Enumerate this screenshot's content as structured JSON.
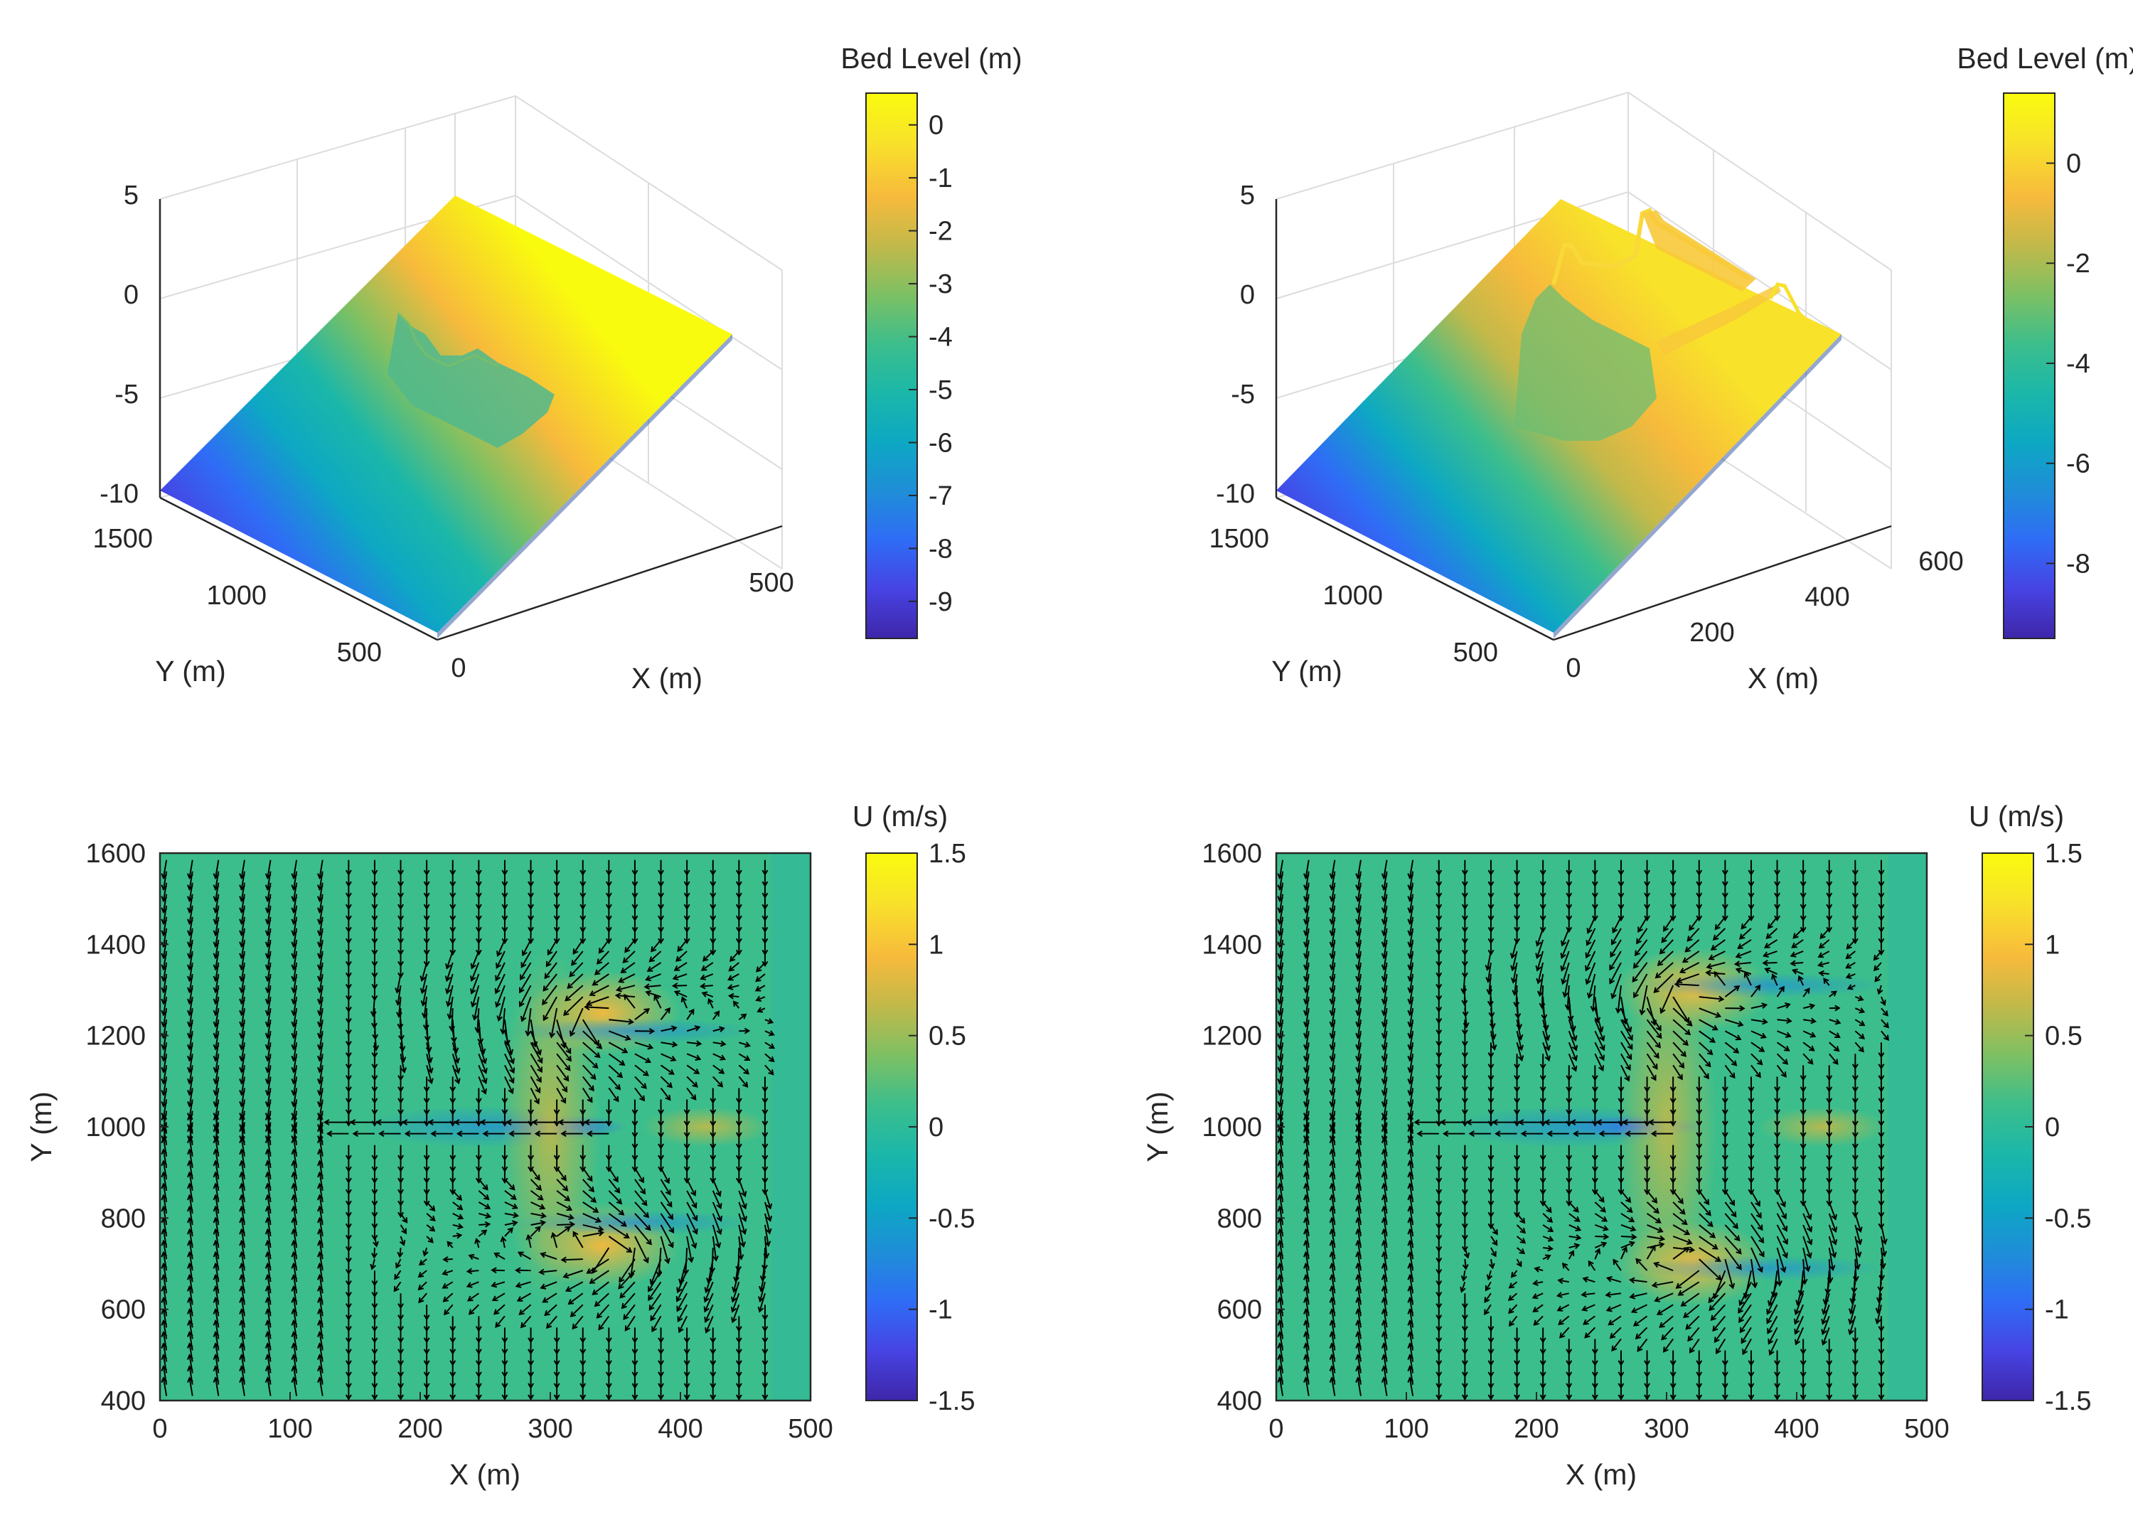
{
  "figure": {
    "panels": 4
  },
  "colormap": [
    "#3e26a8",
    "#4743e3",
    "#2f6cf6",
    "#1f8ed8",
    "#0da8c3",
    "#1bb7a9",
    "#3cbe8c",
    "#7dc063",
    "#c1b94a",
    "#f7ba3c",
    "#f8e22a",
    "#f9fb0e"
  ],
  "chart_data": [
    {
      "type": "surface",
      "id": "bed-level-left",
      "title": "",
      "colorbar_label": "Bed Level (m)",
      "colorbar_range": [
        -9.7,
        0.6
      ],
      "colorbar_ticks": [
        "0",
        "-1",
        "-2",
        "-3",
        "-4",
        "-5",
        "-6",
        "-7",
        "-8",
        "-9"
      ],
      "colorbar_tick_values": [
        0,
        -1,
        -2,
        -3,
        -4,
        -5,
        -6,
        -7,
        -8,
        -9
      ],
      "zlim": [
        -10,
        5
      ],
      "z_ticks": [
        "5",
        "0",
        "-5",
        "-10"
      ],
      "xlabel": "X (m)",
      "x_ticks": [
        "0",
        "500"
      ],
      "xlim": [
        0,
        500
      ],
      "ylabel": "Y (m)",
      "y_ticks": [
        "1500",
        "1000",
        "500"
      ],
      "ylim": [
        400,
        1600
      ],
      "surface_min": -9.7,
      "surface_max": 0.6
    },
    {
      "type": "surface",
      "id": "bed-level-right",
      "title": "",
      "colorbar_label": "Bed Level (m)",
      "colorbar_range": [
        -9.5,
        1.4
      ],
      "colorbar_ticks": [
        "0",
        "-2",
        "-4",
        "-6",
        "-8"
      ],
      "colorbar_tick_values": [
        0,
        -2,
        -4,
        -6,
        -8
      ],
      "zlim": [
        -10,
        5
      ],
      "z_ticks": [
        "5",
        "0",
        "-5",
        "-10"
      ],
      "xlabel": "X (m)",
      "x_ticks": [
        "0",
        "200",
        "400",
        "600"
      ],
      "xlim": [
        0,
        600
      ],
      "ylabel": "Y (m)",
      "y_ticks": [
        "1500",
        "1000",
        "500"
      ],
      "ylim": [
        400,
        1600
      ],
      "surface_min": -9.5,
      "surface_max": 1.4
    },
    {
      "type": "heatmap",
      "id": "velocity-left",
      "colorbar_label": "U (m/s)",
      "colorbar_range": [
        -1.5,
        1.5
      ],
      "colorbar_ticks": [
        "1.5",
        "1",
        "0.5",
        "0",
        "-0.5",
        "-1",
        "-1.5"
      ],
      "colorbar_tick_values": [
        1.5,
        1,
        0.5,
        0,
        -0.5,
        -1,
        -1.5
      ],
      "xlabel": "X (m)",
      "ylabel": "Y (m)",
      "xlim": [
        0,
        500
      ],
      "ylim": [
        400,
        1600
      ],
      "x_ticks": [
        "0",
        "100",
        "200",
        "300",
        "400",
        "500"
      ],
      "x_tick_values": [
        0,
        100,
        200,
        300,
        400,
        500
      ],
      "y_ticks": [
        "1600",
        "1400",
        "1200",
        "1000",
        "800",
        "600",
        "400"
      ],
      "y_tick_values": [
        1600,
        1400,
        1200,
        1000,
        800,
        600,
        400
      ],
      "data_extent_x": 470,
      "features": {
        "jet": {
          "x0": 130,
          "x1": 330,
          "y": 1000,
          "u": -1.2
        },
        "eddies": [
          {
            "x": 340,
            "y": 1250,
            "u": 1.0
          },
          {
            "x": 340,
            "y": 740,
            "u": 1.0
          }
        ],
        "bars": [
          {
            "x0": 270,
            "x1": 460,
            "y": 1210
          },
          {
            "x0": 270,
            "x1": 460,
            "y": 790
          }
        ]
      },
      "quiver": true
    },
    {
      "type": "heatmap",
      "id": "velocity-right",
      "colorbar_label": "U (m/s)",
      "colorbar_range": [
        -1.5,
        1.5
      ],
      "colorbar_ticks": [
        "1.5",
        "1",
        "0.5",
        "0",
        "-0.5",
        "-1",
        "-1.5"
      ],
      "colorbar_tick_values": [
        1.5,
        1,
        0.5,
        0,
        -0.5,
        -1,
        -1.5
      ],
      "xlabel": "X (m)",
      "ylabel": "Y (m)",
      "xlim": [
        0,
        500
      ],
      "ylim": [
        400,
        1600
      ],
      "x_ticks": [
        "0",
        "100",
        "200",
        "300",
        "400",
        "500"
      ],
      "x_tick_values": [
        0,
        100,
        200,
        300,
        400,
        500
      ],
      "y_ticks": [
        "1600",
        "1400",
        "1200",
        "1000",
        "800",
        "600",
        "400"
      ],
      "y_tick_values": [
        1600,
        1400,
        1200,
        1000,
        800,
        600,
        400
      ],
      "data_extent_x": 470,
      "features": {
        "jet": {
          "x0": 110,
          "x1": 300,
          "y": 1000,
          "u": -1.1
        },
        "eddies": [
          {
            "x": 320,
            "y": 1300,
            "u": 1.0
          },
          {
            "x": 320,
            "y": 700,
            "u": 1.0
          }
        ],
        "bars": [
          {
            "x0": 280,
            "x1": 470,
            "y": 1310
          },
          {
            "x0": 280,
            "x1": 470,
            "y": 690
          }
        ]
      },
      "quiver": true
    }
  ]
}
